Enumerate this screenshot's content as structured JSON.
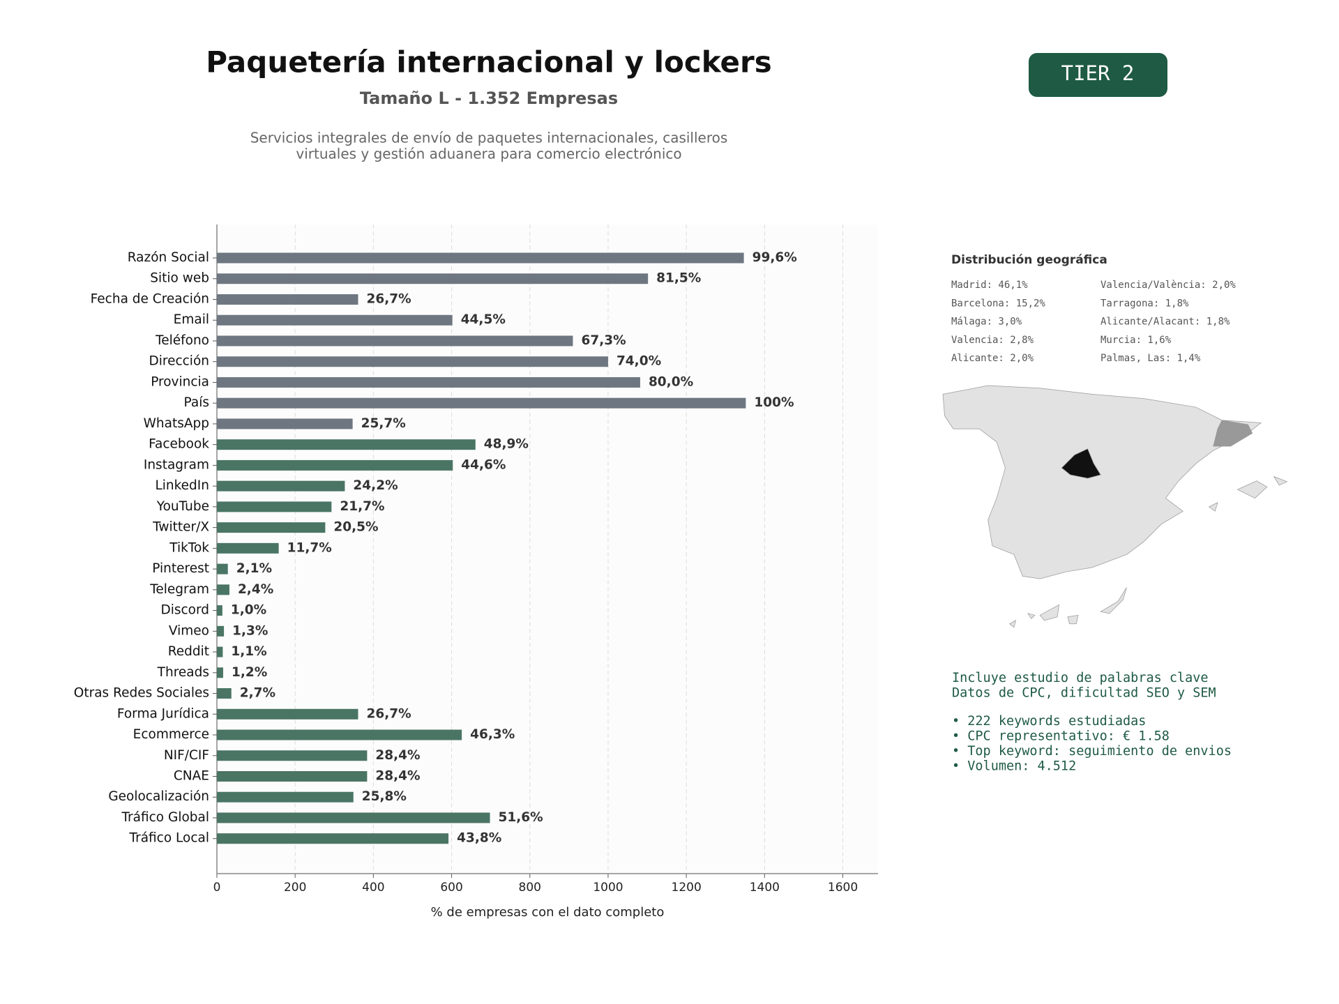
{
  "header": {
    "title": "Paquetería internacional y lockers",
    "subtitle": "Tamaño L - 1.352 Empresas",
    "description": [
      "Servicios integrales de envío de paquetes internacionales, casilleros",
      "virtuales y gestión aduanera para comercio electrónico"
    ]
  },
  "badge": "TIER 2",
  "geo": {
    "title": "Distribución geográfica",
    "items": [
      "Madrid: 46,1%",
      "Barcelona: 15,2%",
      "Málaga: 3,0%",
      "Valencia: 2,8%",
      "Alicante: 2,0%",
      "Valencia/València: 2,0%",
      "Tarragona: 1,8%",
      "Alicante/Alacant: 1,8%",
      "Murcia: 1,6%",
      "Palmas, Las: 1,4%"
    ]
  },
  "info": {
    "lines": [
      "Incluye estudio de palabras clave",
      "Datos de CPC, dificultad SEO y SEM"
    ],
    "bullets": [
      "• 222 keywords estudiadas",
      "• CPC representativo: € 1.58",
      "• Top keyword: seguimiento de envios",
      "• Volumen: 4.512"
    ]
  },
  "chart_data": {
    "type": "barh",
    "xlabel": "% de empresas con el dato completo",
    "categories": [
      "Razón Social",
      "Sitio web",
      "Fecha de Creación",
      "Email",
      "Teléfono",
      "Dirección",
      "Provincia",
      "País",
      "WhatsApp",
      "Facebook",
      "Instagram",
      "LinkedIn",
      "YouTube",
      "Twitter/X",
      "TikTok",
      "Pinterest",
      "Telegram",
      "Discord",
      "Vimeo",
      "Reddit",
      "Threads",
      "Otras Redes Sociales",
      "Forma Jurídica",
      "Ecommerce",
      "NIF/CIF",
      "CNAE",
      "Geolocalización",
      "Tráfico Global",
      "Tráfico Local"
    ],
    "values": [
      1347,
      1102,
      361,
      602,
      910,
      1000,
      1082,
      1352,
      347,
      661,
      603,
      327,
      293,
      277,
      158,
      28,
      32,
      14,
      18,
      15,
      16,
      37,
      361,
      626,
      384,
      384,
      349,
      698,
      592
    ],
    "value_labels": [
      "99,6%",
      "81,5%",
      "26,7%",
      "44,5%",
      "67,3%",
      "74,0%",
      "80,0%",
      "100%",
      "25,7%",
      "48,9%",
      "44,6%",
      "24,2%",
      "21,7%",
      "20,5%",
      "11,7%",
      "2,1%",
      "2,4%",
      "1,0%",
      "1,3%",
      "1,1%",
      "1,2%",
      "2,7%",
      "26,7%",
      "46,3%",
      "28,4%",
      "28,4%",
      "25,8%",
      "51,6%",
      "43,8%"
    ],
    "colors": [
      "#6e7781",
      "#6e7781",
      "#6e7781",
      "#6e7781",
      "#6e7781",
      "#6e7781",
      "#6e7781",
      "#6e7781",
      "#6e7781",
      "#4a7565",
      "#4a7565",
      "#4a7565",
      "#4a7565",
      "#4a7565",
      "#4a7565",
      "#4a7565",
      "#4a7565",
      "#4a7565",
      "#4a7565",
      "#4a7565",
      "#4a7565",
      "#4a7565",
      "#4a7565",
      "#4a7565",
      "#4a7565",
      "#4a7565",
      "#4a7565",
      "#4a7565",
      "#4a7565"
    ],
    "xlim": [
      0,
      1690
    ],
    "xticks": [
      0,
      200,
      400,
      600,
      800,
      1000,
      1200,
      1400,
      1600
    ],
    "grid": true
  }
}
